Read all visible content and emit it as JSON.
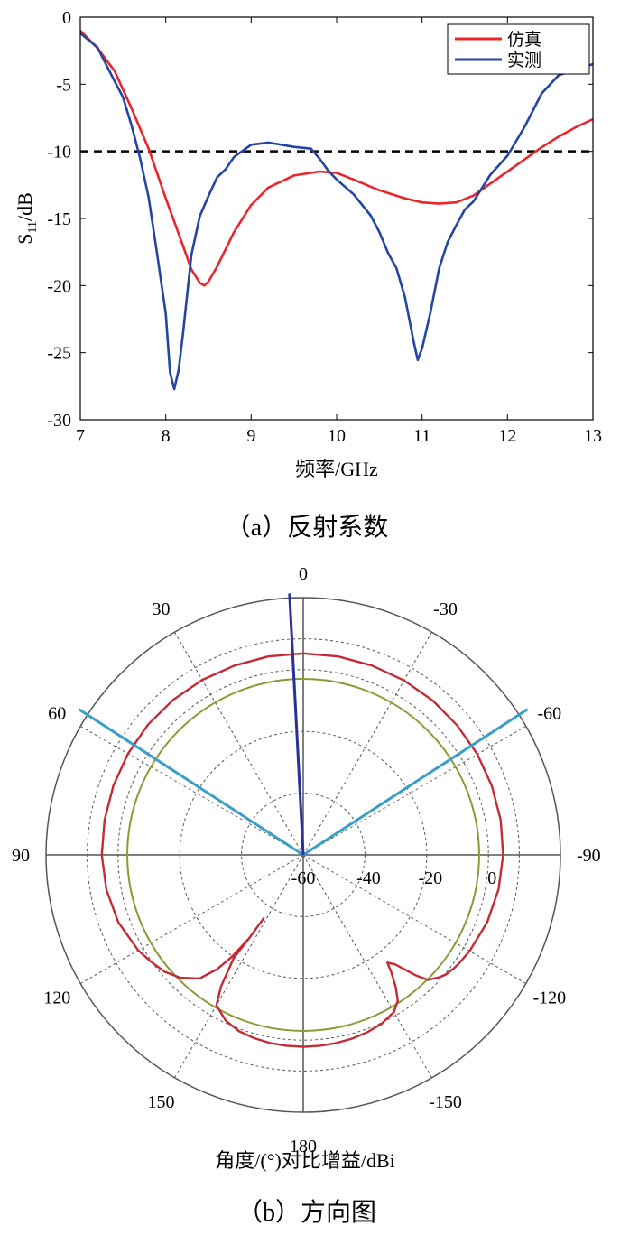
{
  "chart_data": [
    {
      "type": "line",
      "xlabel": "频率/GHz",
      "ylabel_main": "S",
      "ylabel_sub": "11",
      "ylabel_unit": "/dB",
      "caption": "（a）反射系数",
      "xlim": [
        7,
        13
      ],
      "ylim": [
        -30,
        0
      ],
      "xticks": [
        "7",
        "8",
        "9",
        "10",
        "11",
        "12",
        "13"
      ],
      "yticks": [
        "0",
        "-5",
        "-10",
        "-15",
        "-20",
        "-25",
        "-30"
      ],
      "threshold": -10,
      "legend_position": "top-right",
      "colors": {
        "sim": "#e8262b",
        "meas": "#2446a3",
        "threshold": "#000000"
      },
      "series": [
        {
          "name": "仿真",
          "x": [
            7.0,
            7.2,
            7.4,
            7.6,
            7.8,
            8.0,
            8.2,
            8.3,
            8.4,
            8.45,
            8.5,
            8.6,
            8.8,
            9.0,
            9.2,
            9.5,
            9.8,
            10.0,
            10.2,
            10.5,
            10.8,
            11.0,
            11.2,
            11.4,
            11.6,
            11.8,
            12.0,
            12.2,
            12.4,
            12.6,
            12.8,
            13.0
          ],
          "y": [
            -1.0,
            -2.3,
            -4.0,
            -6.8,
            -9.8,
            -13.5,
            -17.0,
            -18.8,
            -19.8,
            -20.0,
            -19.7,
            -18.6,
            -16.0,
            -14.0,
            -12.7,
            -11.8,
            -11.5,
            -11.6,
            -12.1,
            -12.9,
            -13.5,
            -13.8,
            -13.9,
            -13.8,
            -13.3,
            -12.4,
            -11.5,
            -10.6,
            -9.7,
            -8.9,
            -8.2,
            -7.6
          ]
        },
        {
          "name": "实测",
          "x": [
            7.0,
            7.2,
            7.4,
            7.5,
            7.6,
            7.7,
            7.8,
            7.9,
            8.0,
            8.05,
            8.1,
            8.15,
            8.2,
            8.3,
            8.4,
            8.5,
            8.6,
            8.7,
            8.8,
            9.0,
            9.2,
            9.5,
            9.7,
            9.8,
            9.9,
            10.0,
            10.2,
            10.4,
            10.5,
            10.6,
            10.7,
            10.8,
            10.9,
            10.95,
            11.0,
            11.1,
            11.2,
            11.3,
            11.4,
            11.5,
            11.6,
            11.8,
            12.0,
            12.2,
            12.4,
            12.6,
            12.8,
            13.0
          ],
          "y": [
            -1.2,
            -2.5,
            -4.5,
            -6.0,
            -8.0,
            -10.5,
            -13.5,
            -17.5,
            -22.0,
            -26.5,
            -28.0,
            -26.5,
            -23.5,
            -18.0,
            -15.0,
            -13.3,
            -12.2,
            -11.3,
            -10.5,
            -9.4,
            -9.5,
            -9.7,
            -9.9,
            -10.5,
            -11.2,
            -12.0,
            -13.2,
            -14.5,
            -15.8,
            -17.5,
            -19.0,
            -21.0,
            -24.0,
            -25.5,
            -24.5,
            -22.0,
            -19.0,
            -17.0,
            -15.5,
            -14.5,
            -13.8,
            -12.0,
            -10.3,
            -8.0,
            -5.8,
            -4.5,
            -3.8,
            -3.5
          ]
        }
      ]
    },
    {
      "type": "polar",
      "xlabel": "角度/(°)对比增益/dBi",
      "caption": "（b）方向图",
      "rlim": [
        -60,
        0
      ],
      "rticks": [
        "-60",
        "-40",
        "-20",
        "0"
      ],
      "angle_labels": [
        {
          "deg": 0,
          "text": "0"
        },
        {
          "deg": -30,
          "text": "-30"
        },
        {
          "deg": -60,
          "text": "-60"
        },
        {
          "deg": -90,
          "text": "-90"
        },
        {
          "deg": -120,
          "text": "-120"
        },
        {
          "deg": -150,
          "text": "-150"
        },
        {
          "deg": 180,
          "text": "180"
        },
        {
          "deg": 150,
          "text": "150"
        },
        {
          "deg": 120,
          "text": "120"
        },
        {
          "deg": 90,
          "text": "90"
        },
        {
          "deg": 60,
          "text": "60"
        },
        {
          "deg": 30,
          "text": "30"
        }
      ],
      "colors": {
        "pattern": "#c42b35",
        "circle": "#8a9a34",
        "lines": "#3a9ec8",
        "pointer": "#2a2f9a"
      },
      "reference_circle_r": -3,
      "beam_edges_deg": [
        57,
        -57
      ],
      "pointer_deg": 3,
      "series": [
        {
          "name": "pattern",
          "theta": [
            0,
            10,
            20,
            30,
            40,
            50,
            60,
            70,
            80,
            90,
            100,
            110,
            120,
            125,
            130,
            135,
            140,
            143,
            145,
            147,
            148,
            147,
            146,
            148,
            150,
            155,
            160,
            165,
            170,
            175,
            180,
            -175,
            -170,
            -165,
            -160,
            -155,
            -150,
            -147,
            -145,
            -143,
            -142,
            -140,
            -137,
            -135,
            -132,
            -130,
            -127,
            -125,
            -120,
            -110,
            -100,
            -90,
            -80,
            -70,
            -60,
            -50,
            -40,
            -30,
            -20,
            -10,
            0
          ],
          "r": [
            0,
            0,
            0,
            0.2,
            0.3,
            0.4,
            0.3,
            0.2,
            0.1,
            0,
            -0.5,
            -1.5,
            -3.5,
            -5,
            -6.5,
            -9,
            -13,
            -19,
            -25,
            -33,
            -41,
            -33,
            -25,
            -15,
            -9,
            -6,
            -4.5,
            -3.8,
            -3.4,
            -3.2,
            -3.1,
            -3.2,
            -3.4,
            -3.7,
            -4.2,
            -5,
            -6.5,
            -9,
            -13,
            -18,
            -21,
            -19,
            -12,
            -8,
            -6,
            -5,
            -4.2,
            -3.8,
            -3,
            -1.8,
            -1.0,
            -0.5,
            -0.3,
            -0.2,
            -0.1,
            -0.1,
            0,
            0,
            0,
            0,
            0
          ]
        }
      ]
    }
  ]
}
